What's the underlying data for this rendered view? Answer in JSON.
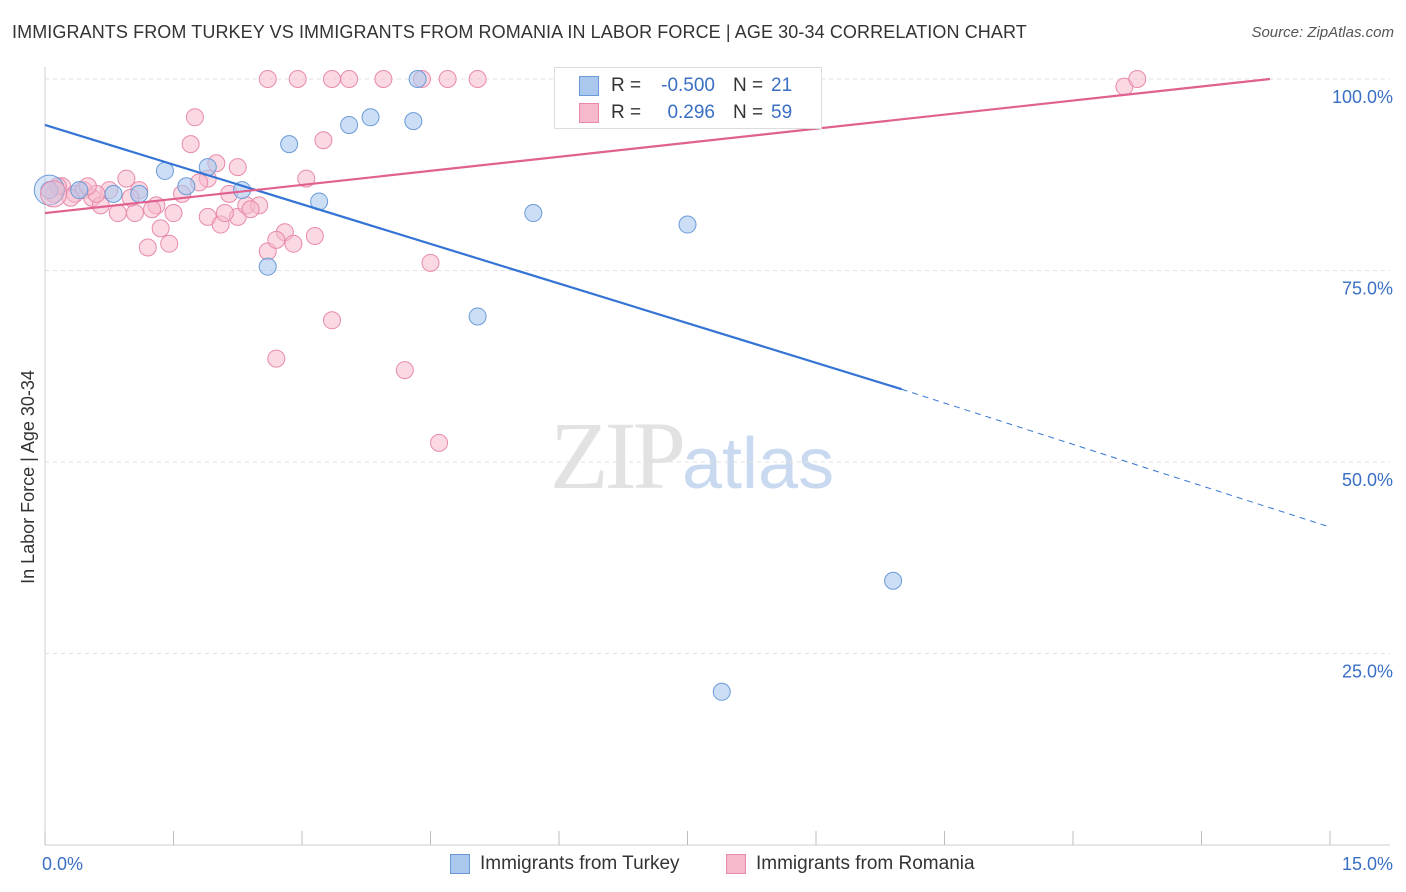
{
  "header": {
    "title": "IMMIGRANTS FROM TURKEY VS IMMIGRANTS FROM ROMANIA IN LABOR FORCE | AGE 30-34 CORRELATION CHART",
    "source": "Source: ZipAtlas.com"
  },
  "watermark": {
    "zip": "ZIP",
    "atlas": "atlas"
  },
  "legend": {
    "series1": {
      "r_label": "R =",
      "r_value": "-0.500",
      "n_label": "N =",
      "n_value": "21"
    },
    "series2": {
      "r_label": "R =",
      "r_value": "0.296",
      "n_label": "N =",
      "n_value": "59"
    }
  },
  "colors": {
    "blue_fill": "#aac8ee",
    "blue_stroke": "#6a9bd8",
    "blue_line": "#3474d4",
    "pink_fill": "#f6b9cc",
    "pink_stroke": "#e98aaa",
    "pink_line": "#e0608f",
    "grid": "#e2e2e2",
    "tick_text": "#3a6fc4"
  },
  "chart_data": {
    "type": "scatter",
    "title": "IMMIGRANTS FROM TURKEY VS IMMIGRANTS FROM ROMANIA IN LABOR FORCE | AGE 30-34 CORRELATION CHART",
    "xlabel": "",
    "ylabel": "In Labor Force | Age 30-34",
    "xlim": [
      0,
      15
    ],
    "ylim": [
      0,
      100
    ],
    "x_tick_labels": [
      "0.0%",
      "15.0%"
    ],
    "y_ticks": [
      25,
      50,
      75,
      100
    ],
    "y_tick_labels": [
      "25.0%",
      "50.0%",
      "75.0%",
      "100.0%"
    ],
    "grid": true,
    "legend_position": "top-center",
    "series": [
      {
        "name": "Immigrants from Turkey",
        "color": "#aac8ee",
        "points": [
          [
            0.05,
            85.5
          ],
          [
            0.8,
            85.0
          ],
          [
            1.4,
            88.0
          ],
          [
            1.65,
            86.0
          ],
          [
            2.3,
            85.5
          ],
          [
            2.6,
            75.5
          ],
          [
            2.85,
            91.5
          ],
          [
            3.2,
            84.0
          ],
          [
            3.55,
            94.0
          ],
          [
            3.8,
            95.0
          ],
          [
            4.3,
            94.5
          ],
          [
            4.35,
            100.0
          ],
          [
            5.05,
            69.0
          ],
          [
            5.7,
            82.5
          ],
          [
            7.5,
            81.0
          ],
          [
            9.9,
            34.5
          ],
          [
            7.9,
            20.0
          ],
          [
            1.1,
            85.0
          ],
          [
            0.4,
            85.5
          ],
          [
            1.9,
            88.5
          ],
          [
            8.7,
            100.0
          ]
        ],
        "trend": {
          "x0": 0,
          "y0": 94.0,
          "x1": 10.0,
          "y1": 59.5,
          "dash_to_x": 15.0,
          "dash_to_y": 41.5
        }
      },
      {
        "name": "Immigrants from Romania",
        "color": "#f6b9cc",
        "points": [
          [
            0.1,
            85.0
          ],
          [
            0.2,
            86.0
          ],
          [
            0.35,
            85.0
          ],
          [
            0.45,
            85.5
          ],
          [
            0.55,
            84.5
          ],
          [
            0.65,
            83.5
          ],
          [
            0.75,
            85.5
          ],
          [
            0.85,
            82.5
          ],
          [
            0.95,
            87.0
          ],
          [
            1.05,
            82.5
          ],
          [
            1.1,
            85.5
          ],
          [
            1.2,
            78.0
          ],
          [
            1.3,
            83.5
          ],
          [
            1.35,
            80.5
          ],
          [
            1.45,
            78.5
          ],
          [
            1.5,
            82.5
          ],
          [
            1.6,
            85.0
          ],
          [
            1.7,
            91.5
          ],
          [
            1.75,
            95.0
          ],
          [
            1.9,
            87.0
          ],
          [
            1.9,
            82.0
          ],
          [
            2.0,
            89.0
          ],
          [
            2.05,
            81.0
          ],
          [
            2.15,
            85.0
          ],
          [
            2.25,
            88.5
          ],
          [
            2.25,
            82.0
          ],
          [
            2.35,
            83.5
          ],
          [
            2.5,
            83.5
          ],
          [
            2.6,
            77.5
          ],
          [
            2.7,
            63.5
          ],
          [
            2.8,
            80.0
          ],
          [
            2.9,
            78.5
          ],
          [
            3.05,
            87.0
          ],
          [
            3.15,
            79.5
          ],
          [
            3.25,
            92.0
          ],
          [
            3.35,
            68.5
          ],
          [
            2.6,
            100.0
          ],
          [
            2.95,
            100.0
          ],
          [
            3.35,
            100.0
          ],
          [
            3.55,
            100.0
          ],
          [
            3.95,
            100.0
          ],
          [
            4.4,
            100.0
          ],
          [
            4.7,
            100.0
          ],
          [
            5.05,
            100.0
          ],
          [
            4.2,
            62.0
          ],
          [
            4.5,
            76.0
          ],
          [
            4.6,
            52.5
          ],
          [
            12.6,
            99.0
          ],
          [
            12.75,
            100.0
          ],
          [
            0.6,
            85.0
          ],
          [
            0.3,
            84.5
          ],
          [
            1.0,
            84.5
          ],
          [
            2.4,
            83.0
          ],
          [
            0.15,
            86.0
          ],
          [
            1.25,
            83.0
          ],
          [
            2.1,
            82.5
          ],
          [
            0.5,
            86.0
          ],
          [
            2.7,
            79.0
          ],
          [
            1.8,
            86.5
          ]
        ],
        "trend": {
          "x0": 0,
          "y0": 82.5,
          "x1": 14.3,
          "y1": 100.0
        }
      }
    ]
  },
  "bottom_legend": {
    "item1": "Immigrants from Turkey",
    "item2": "Immigrants from Romania"
  }
}
